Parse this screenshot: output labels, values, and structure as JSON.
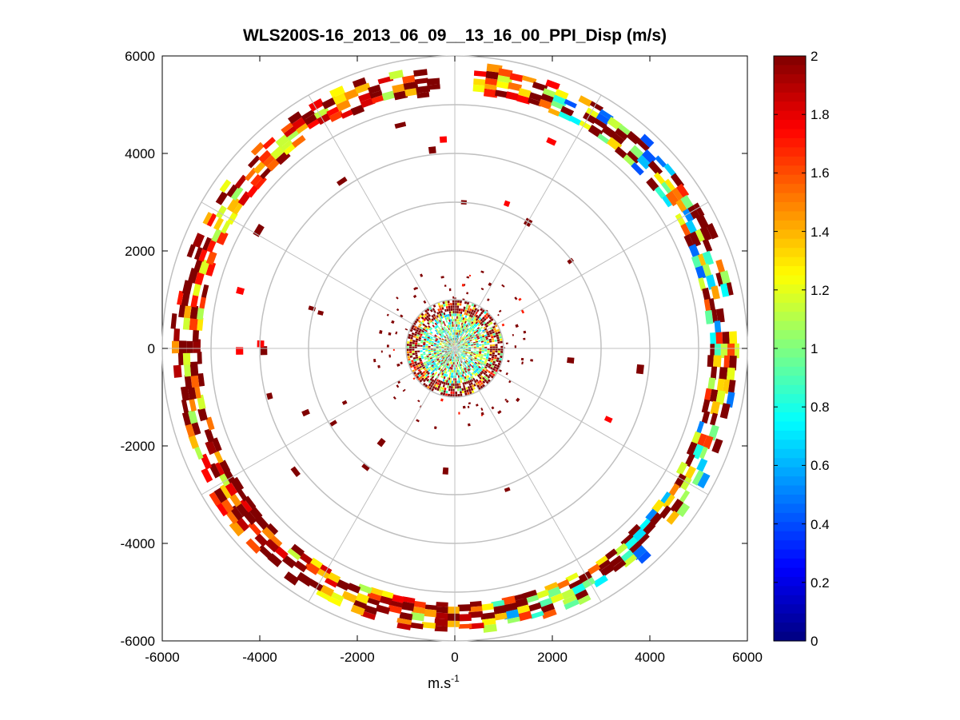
{
  "chart_data": {
    "type": "heatmap",
    "subtype": "polar-ppi-scan",
    "title": "WLS200S-16_2013_06_09__13_16_00_PPI_Disp (m/s)",
    "xlabel": "m.s",
    "xlabel_superscript": "-1",
    "ylabel": "",
    "xlim": [
      -6000,
      6000
    ],
    "ylim": [
      -6000,
      6000
    ],
    "x_ticks": [
      "-6000",
      "-4000",
      "-2000",
      "0",
      "2000",
      "4000",
      "6000"
    ],
    "y_ticks": [
      "6000",
      "4000",
      "2000",
      "0",
      "-2000",
      "-4000",
      "-6000"
    ],
    "polar_grid": {
      "range_rings_m": [
        1000,
        2000,
        3000,
        4000,
        5000,
        6000
      ],
      "spoke_angles_deg": [
        0,
        30,
        60,
        90,
        120,
        150,
        180,
        210,
        240,
        270,
        300,
        330
      ]
    },
    "colorbar": {
      "colormap": "jet",
      "range": [
        0,
        2
      ],
      "ticks": [
        "2",
        "1.8",
        "1.6",
        "1.4",
        "1.2",
        "1",
        "0.8",
        "0.6",
        "0.4",
        "0.2",
        "0"
      ]
    },
    "colors": {
      "grid": "#c0c0c0",
      "axis": "#000000",
      "background": "#ffffff"
    },
    "data_description": {
      "outer_band_range_m": [
        5200,
        5700
      ],
      "inner_cluster_range_m": [
        0,
        1300
      ],
      "missing_sector_deg": [
        -4,
        4
      ],
      "value_range": [
        0.3,
        2.0
      ]
    }
  }
}
